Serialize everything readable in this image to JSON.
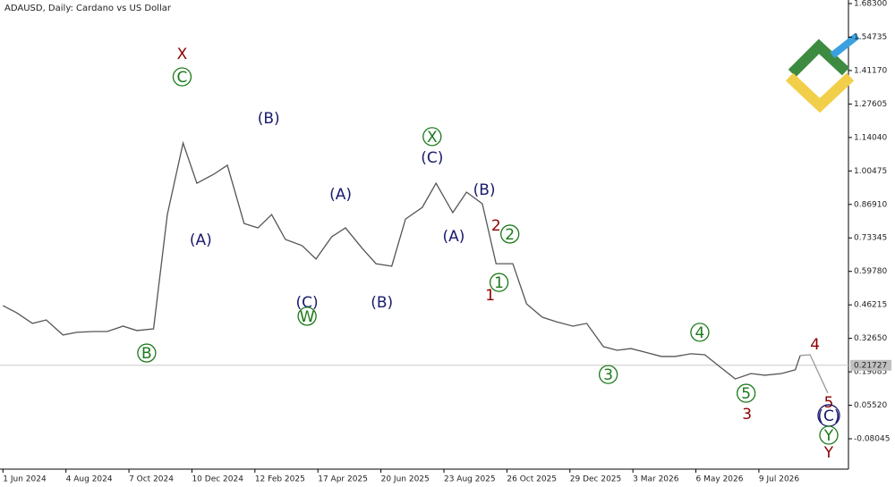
{
  "chart_data": {
    "type": "line",
    "title": "ADAUSD, Daily:  Cardano vs US Dollar",
    "xlim": [
      "29 May 2024",
      "8 Oct 2026"
    ],
    "ylim": [
      -0.2035,
      1.6975
    ],
    "yticks": [
      {
        "value": 1.683,
        "label": "1.68300"
      },
      1.54735,
      {
        "value": 1.4117,
        "label": "1.41170"
      },
      1.27605,
      {
        "value": 1.1404,
        "label": "1.14040"
      },
      1.00475,
      {
        "value": 0.8691,
        "label": "0.86910"
      },
      0.73345,
      {
        "value": 0.5978,
        "label": "0.59780"
      },
      0.46215,
      {
        "value": 0.3265,
        "label": "0.32650"
      },
      0.19085,
      {
        "value": 0.0552,
        "label": "0.05520"
      },
      -0.08045
    ],
    "xticks": [
      "1 Jun 2024",
      "4 Aug 2024",
      "7 Oct 2024",
      "10 Dec 2024",
      "12 Feb 2025",
      "17 Apr 2025",
      "20 Jun 2025",
      "23 Aug 2025",
      "26 Oct 2025",
      "29 Dec 2025",
      "3 Mar 2026",
      "6 May 2026",
      "9 Jul 2026"
    ],
    "current_price": 0.21727,
    "series": [
      {
        "color": "#555555",
        "x": [
          "1 Jun 2024",
          "15 Jun 2024",
          "1 Jul 2024",
          "15 Jul 2024",
          "1 Aug 2024",
          "15 Aug 2024",
          "1 Sep 2024",
          "15 Sep 2024",
          "1 Oct 2024",
          "15 Oct 2024",
          "1 Nov 2024",
          "15 Nov 2024",
          "1 Dec 2024",
          "15 Dec 2024",
          "1 Jan 2025",
          "15 Jan 2025",
          "1 Feb 2025",
          "15 Feb 2025",
          "1 Mar 2025",
          "15 Mar 2025",
          "1 Apr 2025",
          "15 Apr 2025",
          "1 May 2025",
          "15 May 2025",
          "1 Jun 2025",
          "15 Jun 2025",
          "1 Jul 2025",
          "15 Jul 2025",
          "1 Aug 2025",
          "15 Aug 2025",
          "1 Sep 2025",
          "15 Sep 2025",
          "1 Oct 2025",
          "15 Oct 2025",
          "1 Nov 2025",
          "15 Nov 2025",
          "1 Dec 2025",
          "15 Dec 2025",
          "1 Jan 2026",
          "15 Jan 2026",
          "1 Feb 2026",
          "15 Feb 2026",
          "1 Mar 2026",
          "15 Mar 2026",
          "1 Apr 2026",
          "15 Apr 2026",
          "1 May 2026",
          "15 May 2026",
          "1 Jun 2026",
          "15 Jun 2026",
          "1 Jul 2026",
          "15 Jul 2026",
          "1 Aug 2026",
          "15 Aug 2026",
          "20 Aug 2026"
        ],
        "values": [
          0.459,
          0.43,
          0.387,
          0.401,
          0.34,
          0.351,
          0.354,
          0.354,
          0.376,
          0.358,
          0.365,
          0.828,
          1.118,
          0.955,
          0.991,
          1.028,
          0.792,
          0.774,
          0.828,
          0.727,
          0.702,
          0.648,
          0.738,
          0.774,
          0.691,
          0.629,
          0.619,
          0.81,
          0.857,
          0.955,
          0.836,
          0.919,
          0.872,
          0.629,
          0.629,
          0.466,
          0.412,
          0.394,
          0.376,
          0.387,
          0.293,
          0.278,
          0.285,
          0.271,
          0.253,
          0.253,
          0.264,
          0.26,
          0.206,
          0.162,
          0.184,
          0.177,
          0.184,
          0.199,
          0.257
        ]
      },
      {
        "color": "#9a9a9a",
        "x": [
          "20 Aug 2026",
          "30 Aug 2026",
          "17 Sep 2026"
        ],
        "values": [
          0.257,
          0.26,
          0.105
        ]
      }
    ],
    "annotations": [
      {
        "text": "X",
        "color": "#8b0000",
        "x": "30 Nov 2024",
        "y": 1.48,
        "circled": false
      },
      {
        "text": "C",
        "color": "#1a7a1a",
        "x": "30 Nov 2024",
        "y": 1.386,
        "circled": true
      },
      {
        "text": "(A)",
        "color": "#1a1a6e",
        "x": "19 Dec 2024",
        "y": 0.727,
        "circled": false
      },
      {
        "text": "B",
        "color": "#1a7a1a",
        "x": "25 Oct 2024",
        "y": 0.267,
        "circled": true
      },
      {
        "text": "(B)",
        "color": "#1a1a6e",
        "x": "26 Feb 2025",
        "y": 1.22,
        "circled": false
      },
      {
        "text": "(C)",
        "color": "#1a1a6e",
        "x": "6 Apr 2025",
        "y": 0.474,
        "circled": false
      },
      {
        "text": "W",
        "color": "#1a7a1a",
        "x": "6 Apr 2025",
        "y": 0.416,
        "circled": true
      },
      {
        "text": "(A)",
        "color": "#1a1a6e",
        "x": "10 May 2025",
        "y": 0.912,
        "circled": false
      },
      {
        "text": "(B)",
        "color": "#1a1a6e",
        "x": "21 Jun 2025",
        "y": 0.474,
        "circled": false
      },
      {
        "text": "X",
        "color": "#1a7a1a",
        "x": "11 Aug 2025",
        "y": 1.144,
        "circled": true
      },
      {
        "text": "(C)",
        "color": "#1a1a6e",
        "x": "11 Aug 2025",
        "y": 1.06,
        "circled": false
      },
      {
        "text": "(A)",
        "color": "#1a1a6e",
        "x": "2 Sep 2025",
        "y": 0.742,
        "circled": false
      },
      {
        "text": "(B)",
        "color": "#1a1a6e",
        "x": "3 Oct 2025",
        "y": 0.93,
        "circled": false
      },
      {
        "text": "2",
        "color": "#8b0000",
        "x": "15 Oct 2025",
        "y": 0.785,
        "circled": false
      },
      {
        "text": "2",
        "color": "#1a7a1a",
        "x": "29 Oct 2025",
        "y": 0.749,
        "circled": true
      },
      {
        "text": "1",
        "color": "#1a7a1a",
        "x": "18 Oct 2025",
        "y": 0.553,
        "circled": true
      },
      {
        "text": "1",
        "color": "#8b0000",
        "x": "9 Oct 2025",
        "y": 0.503,
        "circled": false
      },
      {
        "text": "3",
        "color": "#1a7a1a",
        "x": "6 Feb 2026",
        "y": 0.18,
        "circled": true
      },
      {
        "text": "4",
        "color": "#1a7a1a",
        "x": "10 May 2026",
        "y": 0.351,
        "circled": true
      },
      {
        "text": "5",
        "color": "#1a7a1a",
        "x": "26 Jun 2026",
        "y": 0.104,
        "circled": true
      },
      {
        "text": "3",
        "color": "#8b0000",
        "x": "27 Jun 2026",
        "y": 0.021,
        "circled": false
      },
      {
        "text": "4",
        "color": "#8b0000",
        "x": "4 Sep 2026",
        "y": 0.304,
        "circled": false
      },
      {
        "text": "5",
        "color": "#8b0000",
        "x": "18 Sep 2026",
        "y": 0.068,
        "circled": false
      },
      {
        "text": "(C)",
        "color": "#1a1a6e",
        "x": "18 Sep 2026",
        "y": 0.014,
        "circled": true
      },
      {
        "text": "Y",
        "color": "#1a7a1a",
        "x": "18 Sep 2026",
        "y": -0.066,
        "circled": true
      },
      {
        "text": "Y",
        "color": "#8b0000",
        "x": "18 Sep 2026",
        "y": -0.134,
        "circled": false
      }
    ]
  }
}
